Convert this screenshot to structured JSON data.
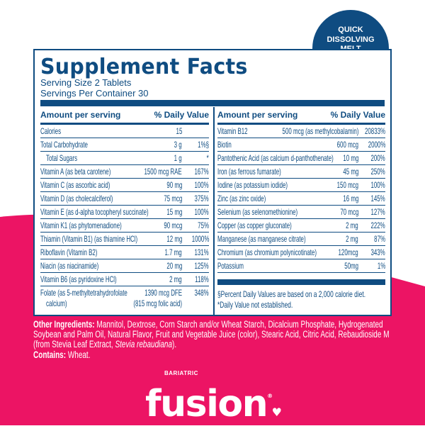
{
  "colors": {
    "navy": "#0f4c81",
    "pink": "#ec1464",
    "white": "#ffffff"
  },
  "badge": {
    "lines": [
      "QUICK",
      "DISSOLVING",
      "MELT"
    ]
  },
  "facts": {
    "title": "Supplement Facts",
    "serving_size": "Serving Size 2 Tablets",
    "servings_per_container": "Servings Per Container 30",
    "header": {
      "amount": "Amount per serving",
      "dv": "% Daily Value"
    },
    "left_rows": [
      {
        "name": "Calories",
        "amount": "15",
        "dv": ""
      },
      {
        "name": "Total Carbohydrate",
        "amount": "3 g",
        "dv": "1%§"
      },
      {
        "name": "Total Sugars",
        "amount": "1 g",
        "dv": "*"
      },
      {
        "name": "Vitamin A (as beta carotene)",
        "amount": "1500 mcg RAE",
        "dv": "167%"
      },
      {
        "name": "Vitamin C (as ascorbic acid)",
        "amount": "90 mg",
        "dv": "100%"
      },
      {
        "name": "Vitamin D (as cholecalciferol)",
        "amount": "75 mcg",
        "dv": "375%"
      },
      {
        "name": "Vitamin E (as d-alpha tocopheryl succinate)",
        "amount": "15 mg",
        "dv": "100%"
      },
      {
        "name": "Vitamin K1 (as phytomenadione)",
        "amount": "90 mcg",
        "dv": "75%"
      },
      {
        "name": "Thiamin (Vitamin B1) (as thiamine HCl)",
        "amount": "12 mg",
        "dv": "1000%"
      },
      {
        "name": "Riboflavin (Vitamin B2)",
        "amount": "1.7 mg",
        "dv": "131%"
      },
      {
        "name": "Niacin (as niacinamide)",
        "amount": "20 mg",
        "dv": "125%"
      },
      {
        "name": "Vitamin B6 (as pyridoxine HCl)",
        "amount": "2 mg",
        "dv": "118%"
      }
    ],
    "folate": {
      "name": "Folate (as 5-methyltetrahydrofolate",
      "name2": "calcium)",
      "amount": "1390 mcg DFE",
      "amount2": "(815 mcg folic acid)",
      "dv": "348%"
    },
    "right_rows": [
      {
        "name": "Vitamin B12",
        "amount": "500 mcg (as methylcobalamin)",
        "dv": "20833%"
      },
      {
        "name": "Biotin",
        "amount": "600 mcg",
        "dv": "2000%"
      },
      {
        "name": "Pantothenic Acid (as calcium d-panthothenate)",
        "amount": "10 mg",
        "dv": "200%"
      },
      {
        "name": "Iron (as ferrous fumarate)",
        "amount": "45 mg",
        "dv": "250%"
      },
      {
        "name": "Iodine (as potassium iodide)",
        "amount": "150 mcg",
        "dv": "100%"
      },
      {
        "name": "Zinc (as zinc oxide)",
        "amount": "16 mg",
        "dv": "145%"
      },
      {
        "name": "Selenium (as selenomethionine)",
        "amount": "70 mcg",
        "dv": "127%"
      },
      {
        "name": "Copper (as copper gluconate)",
        "amount": "2 mg",
        "dv": "222%"
      },
      {
        "name": "Manganese (as manganese citrate)",
        "amount": "2 mg",
        "dv": "87%"
      },
      {
        "name": "Chromium (as chromium polynicotinate)",
        "amount": "120mcg",
        "dv": "343%"
      },
      {
        "name": "Potassium",
        "amount": "50mg",
        "dv": "1%"
      }
    ],
    "footnotes": [
      "§Percent Daily Values are based on a 2,000 calorie diet.",
      "*Daily Value not established."
    ]
  },
  "ingredients": {
    "label": "Other Ingredients:",
    "text": " Mannitol, Dextrose, Corn Starch and/or Wheat Starch, Dicalcium Phosphate, Hydrogenated Soybean and Palm Oil, Natural Flavor, Fruit and Vegetable Juice (color), Stearic Acid, Citric Acid, Rebaudioside M (from Stevia Leaf Extract, ",
    "italic": "Stevia rebaudiana",
    "end": ").",
    "contains_label": "Contains:",
    "contains": " Wheat."
  },
  "brand": {
    "small": "BARIATRIC",
    "name": "fusion",
    "mark": "®"
  }
}
